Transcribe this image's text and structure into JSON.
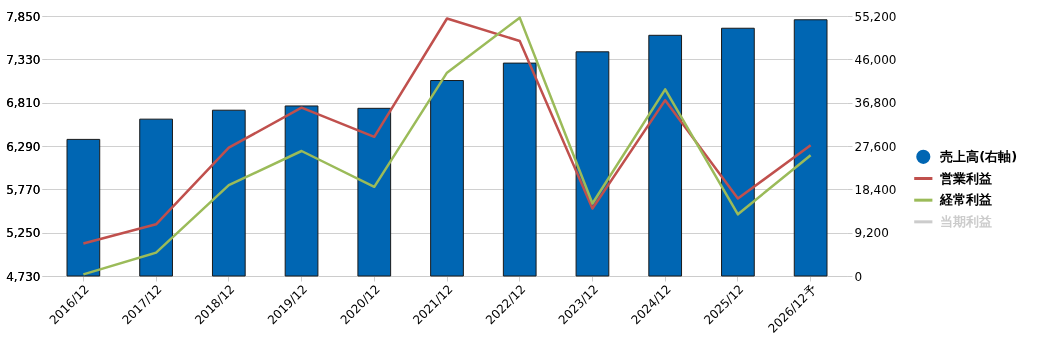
{
  "chart_data": {
    "type": "bar",
    "categories": [
      "2016/12",
      "2017/12",
      "2018/12",
      "2019/12",
      "2020/12",
      "2021/12",
      "2022/12",
      "2023/12",
      "2024/12",
      "2025/12",
      "2026/12予"
    ],
    "series": [
      {
        "name": "売上高(右軸)",
        "axis": "y2",
        "color": "#0066b3",
        "values": [
          29000,
          33300,
          35200,
          36100,
          35600,
          41500,
          45200,
          47600,
          51100,
          52600,
          54400
        ]
      },
      {
        "name": "営業利益",
        "type": "line",
        "color": "#c0504d",
        "values": [
          5120,
          5350,
          6270,
          6750,
          6400,
          7820,
          7550,
          5540,
          6840,
          5660,
          6300
        ]
      },
      {
        "name": "経常利益",
        "type": "line",
        "color": "#9bbb59",
        "values": [
          4750,
          5010,
          5820,
          6230,
          5800,
          7170,
          7830,
          5600,
          6970,
          5470,
          6180
        ]
      },
      {
        "name": "当期利益",
        "type": "line",
        "color": "#cccccc",
        "values": [
          null,
          null,
          null,
          null,
          null,
          null,
          null,
          null,
          null,
          null,
          null
        ]
      }
    ],
    "ylim": [
      4730,
      7850
    ],
    "yticks": [
      {
        "value": 4730,
        "label": "4,730"
      },
      {
        "value": 5250,
        "label": "5,250"
      },
      {
        "value": 5770,
        "label": "5,770"
      },
      {
        "value": 6290,
        "label": "6,290"
      },
      {
        "value": 6810,
        "label": "6,810"
      },
      {
        "value": 7330,
        "label": "7,330"
      },
      {
        "value": 7850,
        "label": "7,850"
      }
    ],
    "y2lim": [
      0,
      55200
    ],
    "y2ticks": [
      0,
      {
        "value": 9200,
        "label": "9,200"
      },
      {
        "value": 18400,
        "label": "18,400"
      },
      {
        "value": 27600,
        "label": "27,600"
      },
      {
        "value": 36800,
        "label": "36,800"
      },
      {
        "value": 46000,
        "label": "46,000"
      },
      {
        "value": 55200,
        "label": "55,200"
      }
    ],
    "grid": "y",
    "legend": "right"
  }
}
